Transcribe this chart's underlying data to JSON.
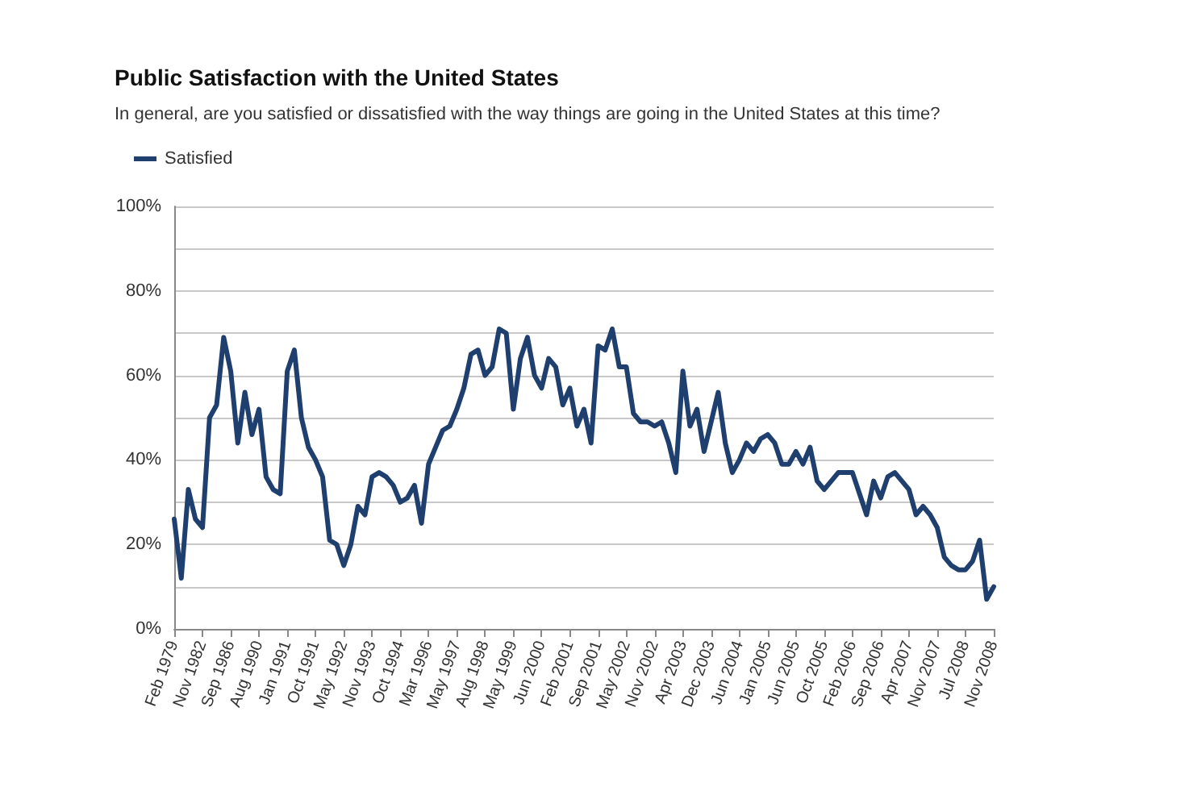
{
  "chart_data": {
    "type": "line",
    "title": "Public Satisfaction with the United States",
    "subtitle": "In general, are you satisfied or dissatisfied with the way things are going in the United States at this time?",
    "categories": [
      "Feb 1979",
      null,
      null,
      null,
      "Nov 1982",
      null,
      null,
      null,
      "Sep 1986",
      null,
      null,
      null,
      "Aug 1990",
      null,
      null,
      null,
      "Jan 1991",
      null,
      null,
      null,
      "Oct 1991",
      null,
      null,
      null,
      "May 1992",
      null,
      null,
      null,
      "Nov 1993",
      null,
      null,
      null,
      "Oct 1994",
      null,
      null,
      null,
      "Mar 1996",
      null,
      null,
      null,
      "May 1997",
      null,
      null,
      null,
      "Aug 1998",
      null,
      null,
      null,
      "May 1999",
      null,
      null,
      null,
      "Jun 2000",
      null,
      null,
      null,
      "Feb 2001",
      null,
      null,
      null,
      "Sep 2001",
      null,
      null,
      null,
      "May 2002",
      null,
      null,
      null,
      "Nov 2002",
      null,
      null,
      null,
      "Apr 2003",
      null,
      null,
      null,
      "Dec 2003",
      null,
      null,
      null,
      "Jun 2004",
      null,
      null,
      null,
      "Jan 2005",
      null,
      null,
      null,
      "Jun 2005",
      null,
      null,
      null,
      "Oct 2005",
      null,
      null,
      null,
      "Feb 2006",
      null,
      null,
      null,
      "Sep 2006",
      null,
      null,
      null,
      "Apr 2007",
      null,
      null,
      null,
      "Nov 2007",
      null,
      null,
      null,
      "Jul 2008",
      null,
      null,
      null,
      "Nov 2008"
    ],
    "series": [
      {
        "name": "Satisfied",
        "color": "#1f3f6e",
        "values": [
          26,
          12,
          33,
          26,
          24,
          50,
          53,
          69,
          61,
          44,
          56,
          46,
          52,
          36,
          33,
          32,
          61,
          66,
          50,
          43,
          40,
          36,
          21,
          20,
          15,
          20,
          29,
          27,
          36,
          37,
          36,
          34,
          30,
          31,
          34,
          25,
          39,
          43,
          47,
          48,
          52,
          57,
          65,
          66,
          60,
          62,
          71,
          70,
          52,
          64,
          69,
          60,
          57,
          64,
          62,
          53,
          57,
          48,
          52,
          44,
          67,
          66,
          71,
          62,
          62,
          51,
          49,
          49,
          48,
          49,
          44,
          37,
          61,
          48,
          52,
          42,
          49,
          56,
          44,
          37,
          40,
          44,
          42,
          45,
          46,
          44,
          39,
          39,
          42,
          39,
          43,
          35,
          33,
          35,
          37,
          37,
          37,
          32,
          27,
          35,
          31,
          36,
          37,
          35,
          33,
          27,
          29,
          27,
          24,
          17,
          15,
          14,
          14,
          16,
          21,
          7,
          10
        ]
      }
    ],
    "ylim": [
      0,
      100
    ],
    "yticks": [
      {
        "value": 0,
        "label": "0%"
      },
      {
        "value": 10,
        "label": null
      },
      {
        "value": 20,
        "label": "20%"
      },
      {
        "value": 30,
        "label": null
      },
      {
        "value": 40,
        "label": "40%"
      },
      {
        "value": 50,
        "label": null
      },
      {
        "value": 60,
        "label": "60%"
      },
      {
        "value": 70,
        "label": null
      },
      {
        "value": 80,
        "label": "80%"
      },
      {
        "value": 90,
        "label": null
      },
      {
        "value": 100,
        "label": "100%"
      }
    ],
    "grid": "y",
    "legend": "top left",
    "marker": "none",
    "line_style": "solid"
  }
}
